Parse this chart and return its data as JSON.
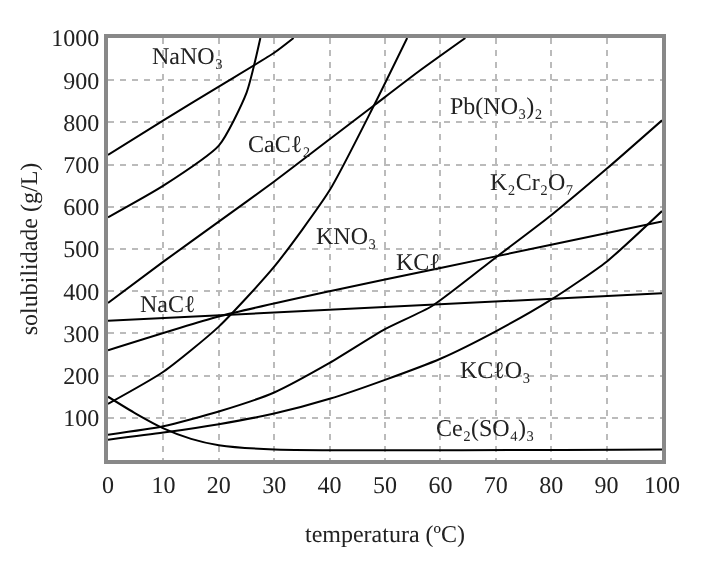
{
  "chart_data": {
    "type": "line",
    "xlabel": "temperatura (ºC)",
    "ylabel": "solubilidade (g/L)",
    "xlim": [
      0,
      100
    ],
    "xticks": [
      0,
      10,
      20,
      30,
      40,
      50,
      60,
      70,
      80,
      90,
      100
    ],
    "ylim": [
      0,
      1000
    ],
    "yticks": [
      100,
      200,
      300,
      400,
      500,
      600,
      700,
      800,
      900,
      1000
    ],
    "grid": true,
    "marker": "none",
    "line_style": "solid",
    "series": [
      {
        "color": "#000000",
        "x": [
          0,
          10,
          20,
          30,
          33.5
        ],
        "values": [
          723,
          805,
          885,
          965,
          1000
        ]
      },
      {
        "color": "#000000",
        "x": [
          0,
          10,
          20,
          25,
          27.5
        ],
        "values": [
          575,
          650,
          745,
          870,
          1000
        ]
      },
      {
        "color": "#000000",
        "x": [
          0,
          10,
          20,
          30,
          40,
          48,
          56,
          64.5
        ],
        "values": [
          372,
          470,
          565,
          660,
          760,
          840,
          920,
          1000
        ]
      },
      {
        "color": "#000000",
        "x": [
          0,
          10,
          20,
          30,
          40,
          48,
          54
        ],
        "values": [
          133,
          209,
          316,
          458,
          639,
          840,
          1000
        ]
      },
      {
        "color": "#000000",
        "x": [
          0,
          100
        ],
        "values": [
          330,
          395
        ]
      },
      {
        "color": "#000000",
        "x": [
          0,
          20,
          40,
          60,
          80,
          100
        ],
        "values": [
          260,
          340,
          400,
          455,
          510,
          565
        ]
      },
      {
        "color": "#000000",
        "x": [
          0,
          10,
          20,
          30,
          40,
          50,
          58.5,
          70,
          80,
          90,
          100
        ],
        "values": [
          60,
          80,
          115,
          160,
          230,
          310,
          365,
          480,
          580,
          690,
          805
        ]
      },
      {
        "color": "#000000",
        "x": [
          0,
          10,
          20,
          30,
          40,
          50,
          60,
          70,
          80,
          90,
          100
        ],
        "values": [
          48,
          65,
          85,
          110,
          145,
          190,
          240,
          305,
          380,
          470,
          590
        ]
      },
      {
        "color": "#000000",
        "x": [
          0,
          5,
          10,
          15,
          20,
          30,
          100
        ],
        "values": [
          150,
          110,
          75,
          50,
          35,
          25,
          25
        ]
      }
    ],
    "annotations": [
      "NaNO₃",
      "CaCℓ₂",
      "Pb(NO₃)₂",
      "K₂Cr₂O₇",
      "KNO₃",
      "KCℓ",
      "NaCℓ",
      "KCℓO₃",
      "Ce₂(SO₄)₃"
    ]
  }
}
